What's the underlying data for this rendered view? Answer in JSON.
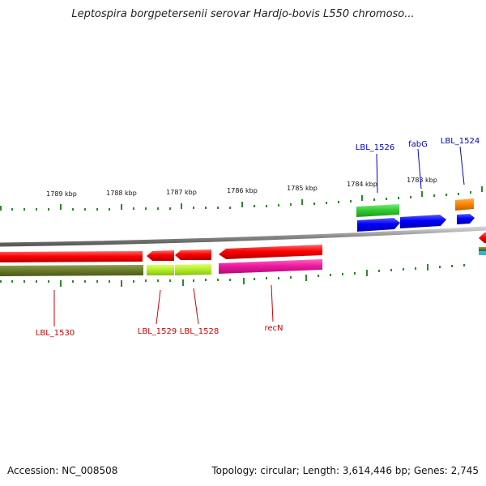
{
  "title": "Leptospira borgpetersenii serovar Hardjo-bovis L550 chromoso...",
  "footer": {
    "accession": "Accession: NC_008508",
    "summary": "Topology: circular; Length: 3,614,446 bp; Genes: 2,745"
  },
  "scale_labels": [
    "1789 kbp",
    "1788 kbp",
    "1787 kbp",
    "1786 kbp",
    "1785 kbp",
    "1784 kbp",
    "1783 kbp"
  ],
  "genes": [
    {
      "name": "LBL_1530",
      "strand": "reverse",
      "color": "#ff0000"
    },
    {
      "name": "LBL_1529",
      "strand": "reverse",
      "color": "#ff0000"
    },
    {
      "name": "LBL_1528",
      "strand": "reverse",
      "color": "#ff0000"
    },
    {
      "name": "recN",
      "strand": "reverse",
      "color": "#ff0000"
    },
    {
      "name": "LBL_1526",
      "strand": "forward",
      "color": "#0000ff"
    },
    {
      "name": "fabG",
      "strand": "forward",
      "color": "#0000ff"
    },
    {
      "name": "LBL_1524",
      "strand": "forward",
      "color": "#0000ff"
    }
  ],
  "colors": {
    "reverse_label": "#cc0000",
    "forward_label": "#0000cc",
    "tick": "#2a8a2a",
    "backbone": "#808080"
  }
}
